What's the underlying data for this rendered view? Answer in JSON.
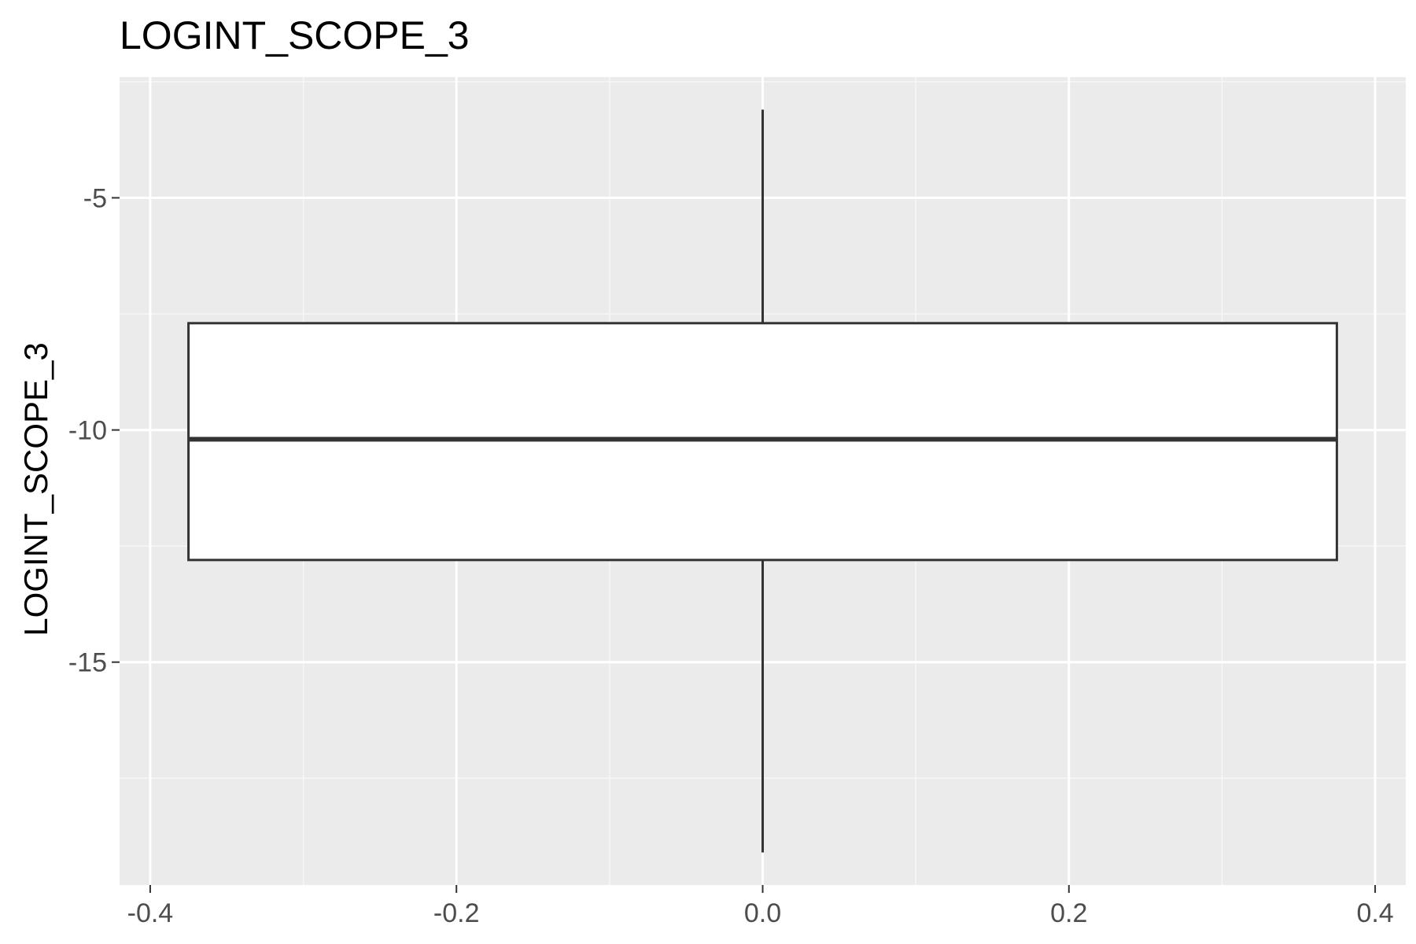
{
  "chart_data": {
    "type": "boxplot",
    "title": "LOGINT_SCOPE_3",
    "xlabel": "",
    "ylabel": "LOGINT_SCOPE_3",
    "xlim": [
      -0.42,
      0.42
    ],
    "ylim": [
      -19.8,
      -2.4
    ],
    "x_ticks": [
      {
        "value": -0.4,
        "label": "-0.4"
      },
      {
        "value": -0.2,
        "label": "-0.2"
      },
      {
        "value": 0.0,
        "label": "0.0"
      },
      {
        "value": 0.2,
        "label": "0.2"
      },
      {
        "value": 0.4,
        "label": "0.4"
      }
    ],
    "y_ticks": [
      {
        "value": -5,
        "label": "-5"
      },
      {
        "value": -10,
        "label": "-10"
      },
      {
        "value": -15,
        "label": "-15"
      }
    ],
    "box": {
      "x_center": 0.0,
      "x_left": -0.375,
      "x_right": 0.375,
      "whisker_min": -19.1,
      "q1": -12.8,
      "median": -10.2,
      "q3": -7.7,
      "whisker_max": -3.1
    },
    "grid": true,
    "colors": {
      "panel_background": "#ebebeb",
      "major_grid": "#ffffff",
      "minor_grid": "#f7f7f7",
      "box_fill": "#ffffff",
      "box_stroke": "#333333"
    }
  }
}
